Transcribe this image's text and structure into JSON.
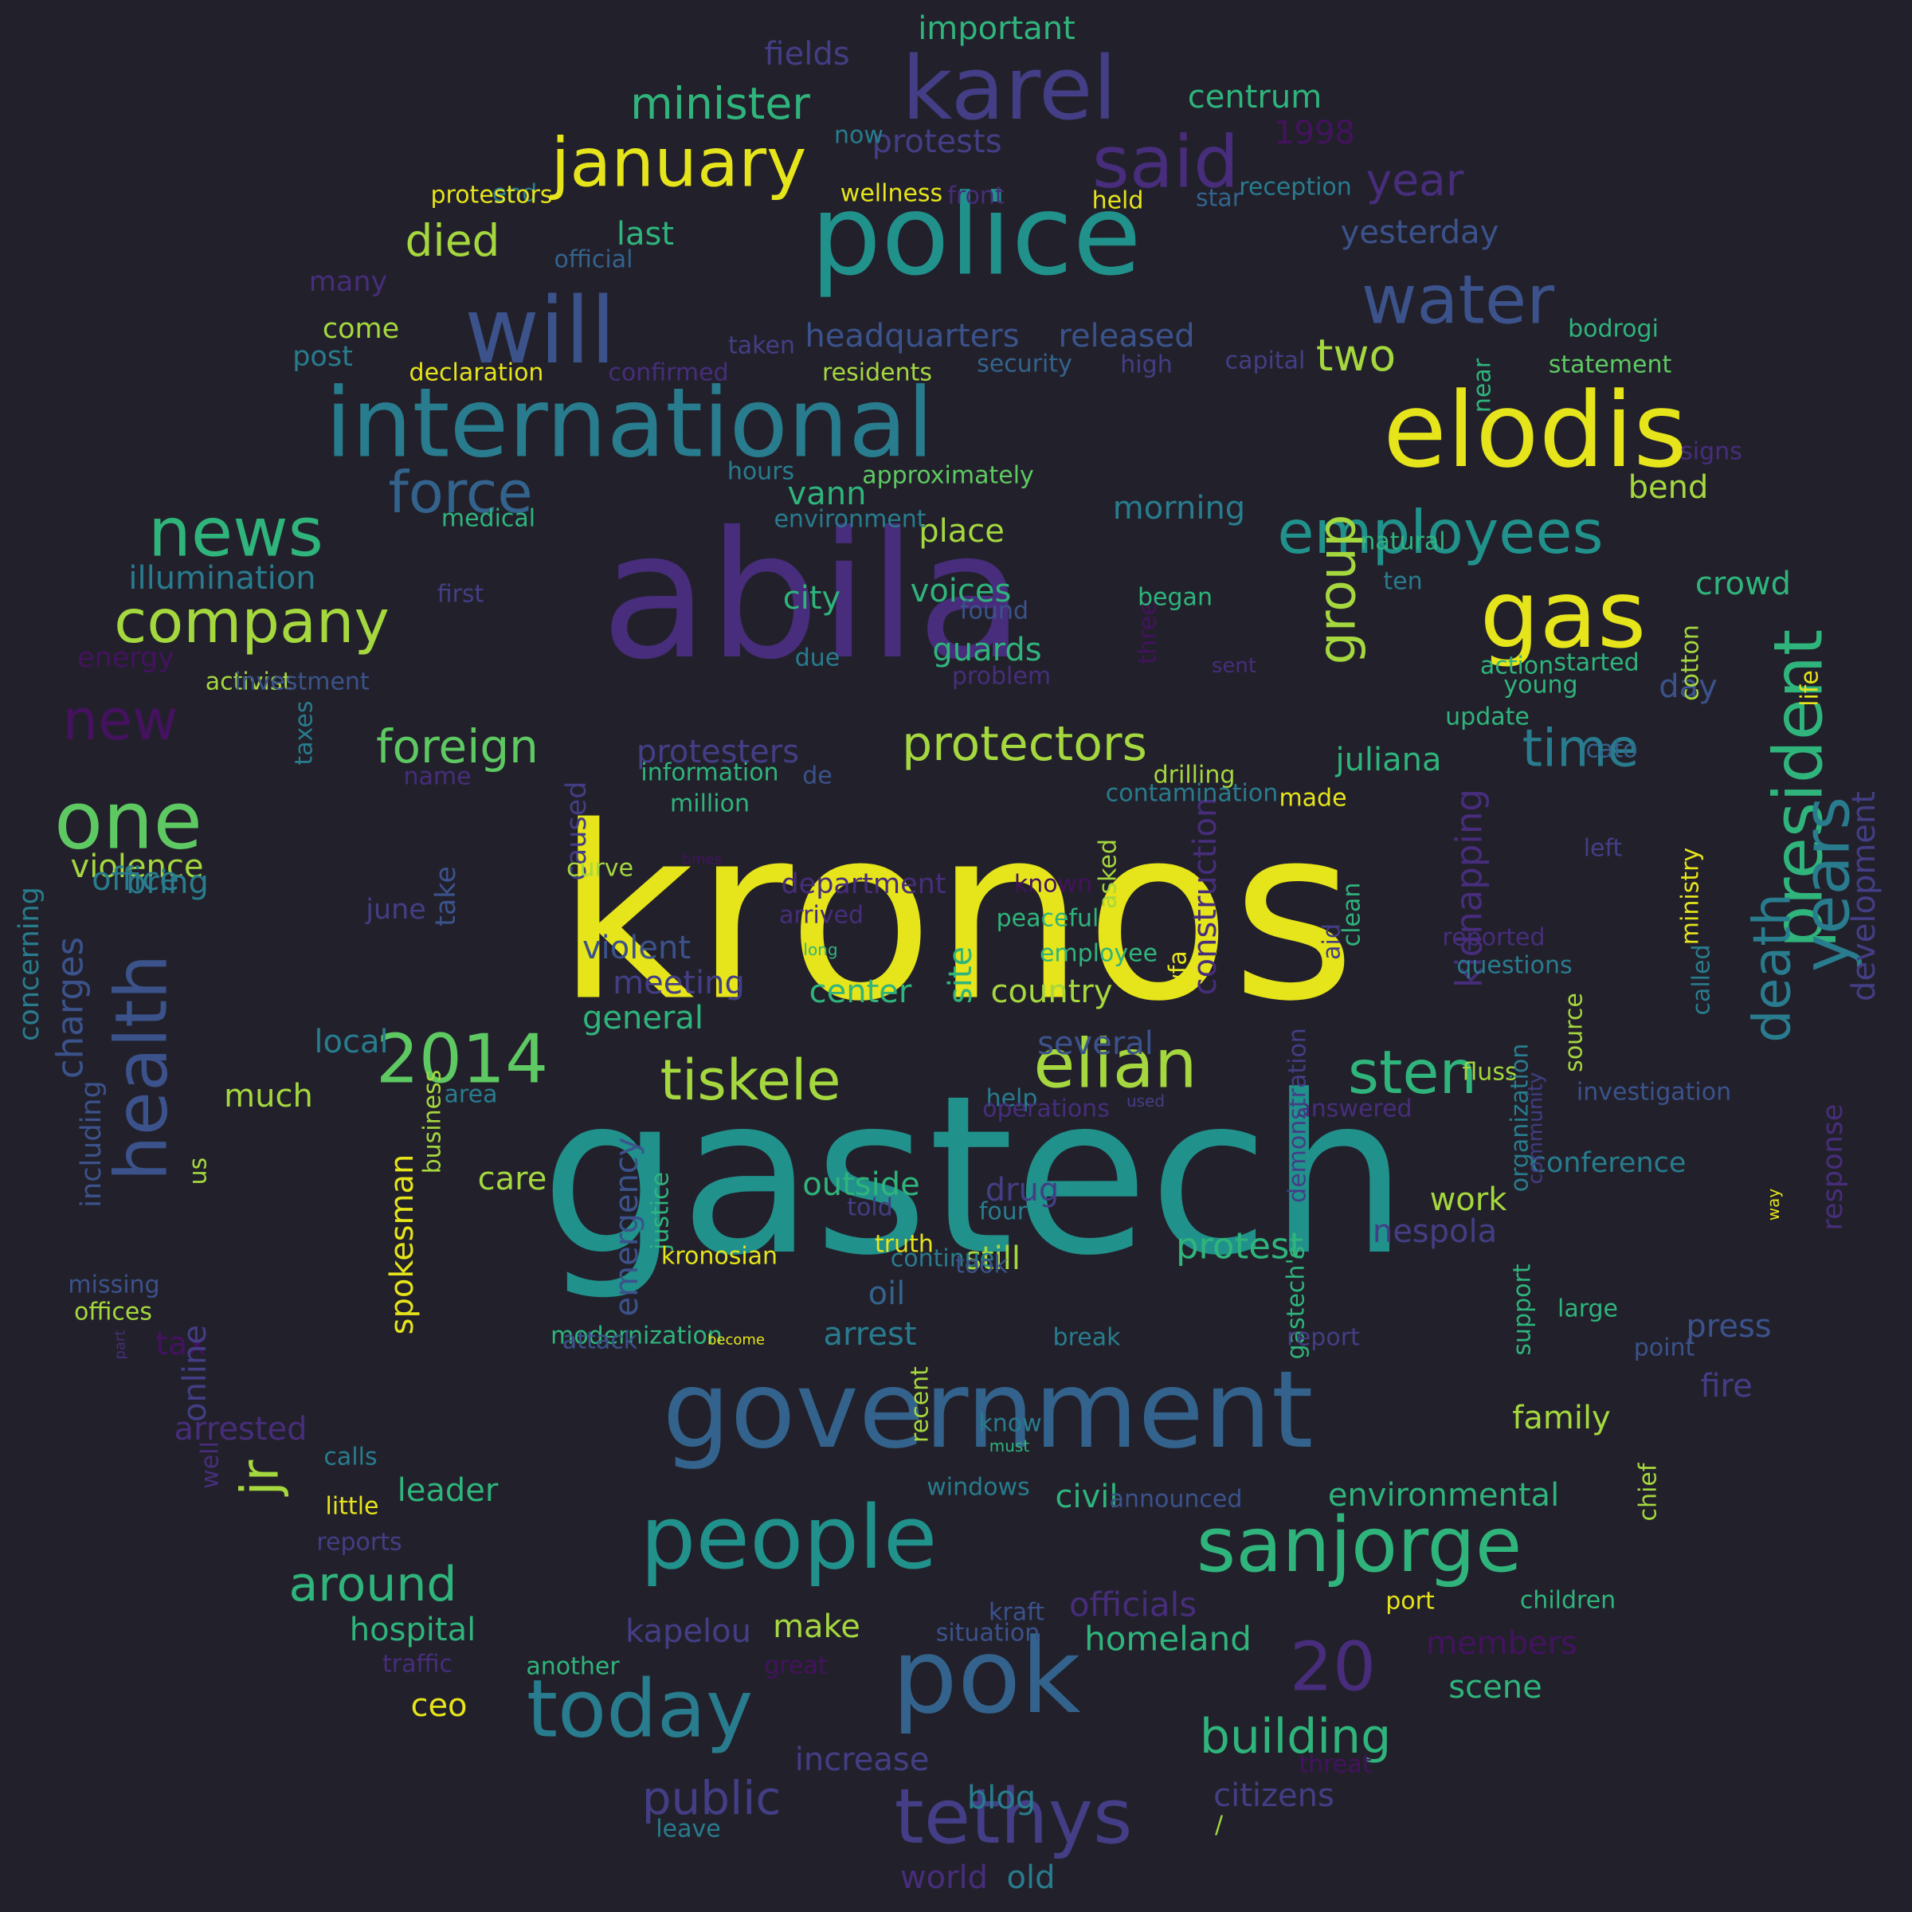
{
  "colors": {
    "background": "#22212b",
    "yellow": "#e6e41a",
    "lime": "#a5d73e",
    "green": "#5ec962",
    "seagreen": "#2fb47c",
    "teal": "#21918c",
    "tealblue": "#287c8e",
    "blue": "#33638d",
    "indigo": "#3b528b",
    "slate": "#433e85",
    "purple": "#472d7b",
    "deep": "#44125f"
  },
  "words": [
    {
      "text": "kronos",
      "color": "yellow"
    },
    {
      "text": "gastech",
      "color": "teal"
    },
    {
      "text": "abila",
      "color": "purple"
    },
    {
      "text": "police",
      "color": "teal"
    },
    {
      "text": "government",
      "color": "blue"
    },
    {
      "text": "elodis",
      "color": "yellow"
    },
    {
      "text": "international",
      "color": "tealblue"
    },
    {
      "text": "pok",
      "color": "blue"
    },
    {
      "text": "people",
      "color": "teal"
    },
    {
      "text": "karel",
      "color": "slate"
    },
    {
      "text": "will",
      "color": "indigo"
    },
    {
      "text": "gas",
      "color": "yellow"
    },
    {
      "text": "sanjorge",
      "color": "seagreen"
    },
    {
      "text": "today",
      "color": "tealblue"
    },
    {
      "text": "january",
      "color": "yellow"
    },
    {
      "text": "tethys",
      "color": "slate"
    },
    {
      "text": "health",
      "color": "indigo"
    },
    {
      "text": "said",
      "color": "purple"
    },
    {
      "text": "president",
      "color": "seagreen"
    },
    {
      "text": "news",
      "color": "seagreen"
    },
    {
      "text": "elian",
      "color": "lime"
    },
    {
      "text": "company",
      "color": "lime"
    },
    {
      "text": "water",
      "color": "indigo"
    },
    {
      "text": "one",
      "color": "green"
    },
    {
      "text": "employees",
      "color": "teal"
    },
    {
      "text": "2014",
      "color": "green"
    },
    {
      "text": "20",
      "color": "purple"
    },
    {
      "text": "years",
      "color": "tealblue"
    },
    {
      "text": "tiskele",
      "color": "lime"
    },
    {
      "text": "sten",
      "color": "seagreen"
    },
    {
      "text": "force",
      "color": "blue"
    },
    {
      "text": "building",
      "color": "seagreen"
    },
    {
      "text": "group",
      "color": "lime"
    },
    {
      "text": "time",
      "color": "tealblue"
    },
    {
      "text": "protectors",
      "color": "lime"
    },
    {
      "text": "public",
      "color": "slate"
    },
    {
      "text": "death",
      "color": "tealblue"
    },
    {
      "text": "jr",
      "color": "lime"
    },
    {
      "text": "minister",
      "color": "seagreen"
    },
    {
      "text": "around",
      "color": "seagreen"
    },
    {
      "text": "foreign",
      "color": "green"
    },
    {
      "text": "new",
      "color": "deep"
    },
    {
      "text": "died",
      "color": "lime"
    },
    {
      "text": "two",
      "color": "lime"
    },
    {
      "text": "year",
      "color": "purple"
    },
    {
      "text": "kidnapping",
      "color": "purple"
    },
    {
      "text": "protesters",
      "color": "slate"
    },
    {
      "text": "citizens",
      "color": "slate"
    },
    {
      "text": "members",
      "color": "deep"
    },
    {
      "text": "officials",
      "color": "purple"
    },
    {
      "text": "development",
      "color": "slate"
    },
    {
      "text": "protest",
      "color": "seagreen"
    },
    {
      "text": "homeland",
      "color": "seagreen"
    },
    {
      "text": "headquarters",
      "color": "indigo"
    },
    {
      "text": "released",
      "color": "indigo"
    },
    {
      "text": "morning",
      "color": "tealblue"
    },
    {
      "text": "yesterday",
      "color": "indigo"
    },
    {
      "text": "construction",
      "color": "purple"
    },
    {
      "text": "hospital",
      "color": "seagreen"
    },
    {
      "text": "juliana",
      "color": "seagreen"
    },
    {
      "text": "environmental",
      "color": "seagreen"
    },
    {
      "text": "kapelou",
      "color": "slate"
    },
    {
      "text": "centrum",
      "color": "seagreen"
    },
    {
      "text": "important",
      "color": "seagreen"
    },
    {
      "text": "fields",
      "color": "slate"
    },
    {
      "text": "protests",
      "color": "slate"
    },
    {
      "text": "last",
      "color": "seagreen"
    },
    {
      "text": "1998",
      "color": "deep"
    },
    {
      "text": "scene",
      "color": "seagreen"
    },
    {
      "text": "place",
      "color": "lime"
    },
    {
      "text": "guards",
      "color": "seagreen"
    },
    {
      "text": "voices",
      "color": "seagreen"
    },
    {
      "text": "city",
      "color": "seagreen"
    },
    {
      "text": "vann",
      "color": "seagreen"
    },
    {
      "text": "crowd",
      "color": "seagreen"
    },
    {
      "text": "bend",
      "color": "lime"
    },
    {
      "text": "day",
      "color": "indigo"
    },
    {
      "text": "made",
      "color": "yellow"
    },
    {
      "text": "nespola",
      "color": "slate"
    },
    {
      "text": "work",
      "color": "lime"
    },
    {
      "text": "fluss",
      "color": "lime"
    },
    {
      "text": "outside",
      "color": "seagreen"
    },
    {
      "text": "drug",
      "color": "slate"
    },
    {
      "text": "still",
      "color": "lime"
    },
    {
      "text": "oil",
      "color": "blue"
    },
    {
      "text": "arrest",
      "color": "tealblue"
    },
    {
      "text": "emergency",
      "color": "indigo"
    },
    {
      "text": "meeting",
      "color": "slate"
    },
    {
      "text": "violent",
      "color": "indigo"
    },
    {
      "text": "general",
      "color": "seagreen"
    },
    {
      "text": "center",
      "color": "seagreen"
    },
    {
      "text": "site",
      "color": "seagreen"
    },
    {
      "text": "several",
      "color": "indigo"
    },
    {
      "text": "country",
      "color": "lime"
    },
    {
      "text": "local",
      "color": "tealblue"
    },
    {
      "text": "much",
      "color": "lime"
    },
    {
      "text": "care",
      "color": "lime"
    },
    {
      "text": "spokesman",
      "color": "yellow"
    },
    {
      "text": "tax",
      "color": "deep"
    },
    {
      "text": "online",
      "color": "slate"
    },
    {
      "text": "arrested",
      "color": "purple"
    },
    {
      "text": "leader",
      "color": "seagreen"
    },
    {
      "text": "civil",
      "color": "seagreen"
    },
    {
      "text": "make",
      "color": "lime"
    },
    {
      "text": "ceo",
      "color": "yellow"
    },
    {
      "text": "increase",
      "color": "slate"
    },
    {
      "text": "blog",
      "color": "tealblue"
    },
    {
      "text": "world",
      "color": "purple"
    },
    {
      "text": "old",
      "color": "tealblue"
    },
    {
      "text": "family",
      "color": "lime"
    },
    {
      "text": "fire",
      "color": "slate"
    },
    {
      "text": "press",
      "color": "indigo"
    },
    {
      "text": "violence",
      "color": "lime"
    },
    {
      "text": "bring",
      "color": "tealblue"
    },
    {
      "text": "office",
      "color": "tealblue"
    },
    {
      "text": "illumination",
      "color": "tealblue"
    },
    {
      "text": "energy",
      "color": "deep"
    },
    {
      "text": "post",
      "color": "tealblue"
    },
    {
      "text": "come",
      "color": "lime"
    },
    {
      "text": "declaration",
      "color": "yellow"
    },
    {
      "text": "confirmed",
      "color": "purple"
    },
    {
      "text": "residents",
      "color": "lime"
    },
    {
      "text": "many",
      "color": "purple"
    },
    {
      "text": "official",
      "color": "blue"
    },
    {
      "text": "end",
      "color": "tealblue"
    },
    {
      "text": "protestors",
      "color": "yellow"
    },
    {
      "text": "now",
      "color": "tealblue"
    },
    {
      "text": "wellness",
      "color": "yellow"
    },
    {
      "text": "star",
      "color": "blue"
    },
    {
      "text": "held",
      "color": "yellow"
    },
    {
      "text": "reception",
      "color": "tealblue"
    },
    {
      "text": "front",
      "color": "purple"
    },
    {
      "text": "taken",
      "color": "slate"
    },
    {
      "text": "security",
      "color": "blue"
    },
    {
      "text": "high",
      "color": "slate"
    },
    {
      "text": "capital",
      "color": "slate"
    },
    {
      "text": "bodrogi",
      "color": "seagreen"
    },
    {
      "text": "statement",
      "color": "green"
    },
    {
      "text": "near",
      "color": "seagreen"
    },
    {
      "text": "signs",
      "color": "purple"
    },
    {
      "text": "hours",
      "color": "tealblue"
    },
    {
      "text": "approximately",
      "color": "green"
    },
    {
      "text": "environment",
      "color": "tealblue"
    },
    {
      "text": "medical",
      "color": "seagreen"
    },
    {
      "text": "first",
      "color": "slate"
    },
    {
      "text": "caused",
      "color": "slate"
    },
    {
      "text": "asked",
      "color": "lime"
    },
    {
      "text": "due",
      "color": "tealblue"
    },
    {
      "text": "found",
      "color": "indigo"
    },
    {
      "text": "problem",
      "color": "purple"
    },
    {
      "text": "three",
      "color": "deep"
    },
    {
      "text": "began",
      "color": "seagreen"
    },
    {
      "text": "sent",
      "color": "purple"
    },
    {
      "text": "natural",
      "color": "seagreen"
    },
    {
      "text": "ten",
      "color": "tealblue"
    },
    {
      "text": "action",
      "color": "seagreen"
    },
    {
      "text": "cotton",
      "color": "lime"
    },
    {
      "text": "started",
      "color": "seagreen"
    },
    {
      "text": "young",
      "color": "seagreen"
    },
    {
      "text": "update",
      "color": "seagreen"
    },
    {
      "text": "cato",
      "color": "blue"
    },
    {
      "text": "life",
      "color": "yellow"
    },
    {
      "text": "activist",
      "color": "lime"
    },
    {
      "text": "investment",
      "color": "indigo"
    },
    {
      "text": "taxes",
      "color": "tealblue"
    },
    {
      "text": "name",
      "color": "purple"
    },
    {
      "text": "information",
      "color": "seagreen"
    },
    {
      "text": "million",
      "color": "seagreen"
    },
    {
      "text": "de",
      "color": "indigo"
    },
    {
      "text": "drilling",
      "color": "lime"
    },
    {
      "text": "contamination",
      "color": "tealblue"
    },
    {
      "text": "concerning",
      "color": "tealblue"
    },
    {
      "text": "charges",
      "color": "indigo"
    },
    {
      "text": "including",
      "color": "indigo"
    },
    {
      "text": "us",
      "color": "lime"
    },
    {
      "text": "take",
      "color": "indigo"
    },
    {
      "text": "june",
      "color": "slate"
    },
    {
      "text": "curve",
      "color": "lime"
    },
    {
      "text": "times",
      "color": "deep"
    },
    {
      "text": "arrived",
      "color": "purple"
    },
    {
      "text": "department",
      "color": "purple"
    },
    {
      "text": "long",
      "color": "seagreen"
    },
    {
      "text": "wfa",
      "color": "yellow"
    },
    {
      "text": "known",
      "color": "deep"
    },
    {
      "text": "employee",
      "color": "seagreen"
    },
    {
      "text": "peaceful",
      "color": "seagreen"
    },
    {
      "text": "aid",
      "color": "slate"
    },
    {
      "text": "clean",
      "color": "seagreen"
    },
    {
      "text": "reported",
      "color": "purple"
    },
    {
      "text": "questions",
      "color": "tealblue"
    },
    {
      "text": "called",
      "color": "tealblue"
    },
    {
      "text": "ministry",
      "color": "yellow"
    },
    {
      "text": "left",
      "color": "slate"
    },
    {
      "text": "source",
      "color": "lime"
    },
    {
      "text": "area",
      "color": "tealblue"
    },
    {
      "text": "help",
      "color": "tealblue"
    },
    {
      "text": "operations",
      "color": "purple"
    },
    {
      "text": "used",
      "color": "slate"
    },
    {
      "text": "answered",
      "color": "purple"
    },
    {
      "text": "investigation",
      "color": "indigo"
    },
    {
      "text": "response",
      "color": "purple"
    },
    {
      "text": "way",
      "color": "yellow"
    },
    {
      "text": "conference",
      "color": "tealblue"
    },
    {
      "text": "community",
      "color": "slate"
    },
    {
      "text": "organization",
      "color": "tealblue"
    },
    {
      "text": "demonstration",
      "color": "slate"
    },
    {
      "text": "business",
      "color": "lime"
    },
    {
      "text": "justice",
      "color": "seagreen"
    },
    {
      "text": "told",
      "color": "slate"
    },
    {
      "text": "four",
      "color": "tealblue"
    },
    {
      "text": "truth",
      "color": "yellow"
    },
    {
      "text": "continue",
      "color": "tealblue"
    },
    {
      "text": "took",
      "color": "indigo"
    },
    {
      "text": "kronosian",
      "color": "yellow"
    },
    {
      "text": "modernization",
      "color": "seagreen"
    },
    {
      "text": "attack",
      "color": "indigo"
    },
    {
      "text": "become",
      "color": "yellow"
    },
    {
      "text": "break",
      "color": "tealblue"
    },
    {
      "text": "gastech's",
      "color": "seagreen"
    },
    {
      "text": "report",
      "color": "slate"
    },
    {
      "text": "support",
      "color": "seagreen"
    },
    {
      "text": "large",
      "color": "seagreen"
    },
    {
      "text": "point",
      "color": "indigo"
    },
    {
      "text": "chief",
      "color": "lime"
    },
    {
      "text": "missing",
      "color": "indigo"
    },
    {
      "text": "offices",
      "color": "lime"
    },
    {
      "text": "part",
      "color": "purple"
    },
    {
      "text": "well",
      "color": "purple"
    },
    {
      "text": "calls",
      "color": "tealblue"
    },
    {
      "text": "little",
      "color": "yellow"
    },
    {
      "text": "reports",
      "color": "slate"
    },
    {
      "text": "know",
      "color": "tealblue"
    },
    {
      "text": "must",
      "color": "seagreen"
    },
    {
      "text": "recent",
      "color": "lime"
    },
    {
      "text": "windows",
      "color": "tealblue"
    },
    {
      "text": "announced",
      "color": "indigo"
    },
    {
      "text": "kraft",
      "color": "indigo"
    },
    {
      "text": "situation",
      "color": "indigo"
    },
    {
      "text": "port",
      "color": "yellow"
    },
    {
      "text": "children",
      "color": "seagreen"
    },
    {
      "text": "traffic",
      "color": "purple"
    },
    {
      "text": "another",
      "color": "seagreen"
    },
    {
      "text": "great",
      "color": "deep"
    },
    {
      "text": "threat",
      "color": "deep"
    },
    {
      "text": "leave",
      "color": "tealblue"
    },
    {
      "text": "/",
      "color": "lime"
    }
  ]
}
